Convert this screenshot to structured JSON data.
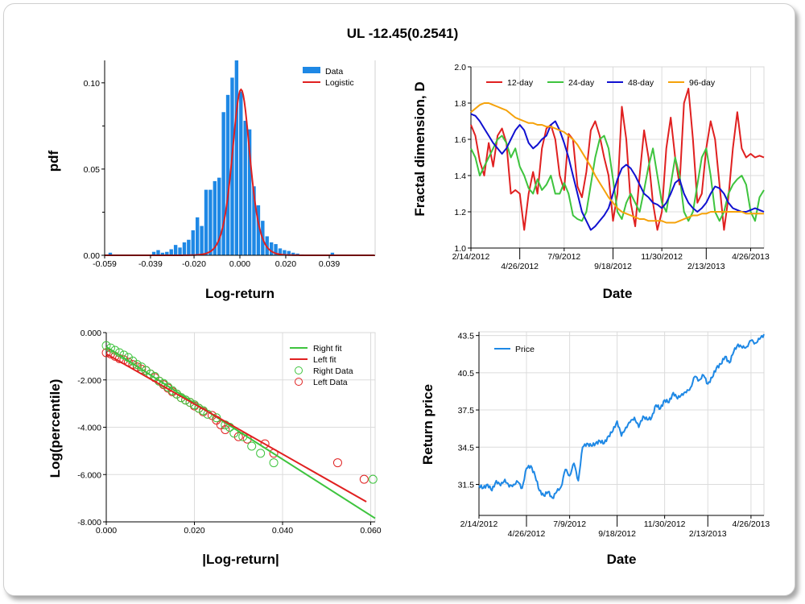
{
  "title": "UL -12.45(0.2541)",
  "chart_data": [
    {
      "id": "histogram",
      "type": "bar",
      "xlabel": "Log-return",
      "ylabel": "pdf",
      "xlim": [
        -0.059,
        0.059
      ],
      "ylim": [
        0,
        0.113
      ],
      "xticks": [
        -0.059,
        -0.039,
        -0.02,
        0.0,
        0.02,
        0.039
      ],
      "xtick_labels": [
        "-0.059",
        "-0.039",
        "-0.020",
        "0.000",
        "0.020",
        "0.039"
      ],
      "yticks": [
        0,
        0.05,
        0.1
      ],
      "ytick_labels": [
        "0.00",
        "0.05",
        "0.10"
      ],
      "legend": {
        "position": "top-right",
        "entries": [
          {
            "label": "Data",
            "color": "#1e88e5"
          },
          {
            "label": "Logistic",
            "color": "#e02020"
          }
        ]
      },
      "bins_start": -0.0575,
      "bin_width": 0.0019,
      "values": [
        0.0015,
        0,
        0,
        0,
        0,
        0,
        0,
        0,
        0,
        0,
        0.002,
        0.003,
        0.0015,
        0.002,
        0.0035,
        0.006,
        0.0045,
        0.0075,
        0.009,
        0.0145,
        0.022,
        0.017,
        0.038,
        0.038,
        0.043,
        0.045,
        0.083,
        0.093,
        0.103,
        0.113,
        0.095,
        0.078,
        0.073,
        0.04,
        0.029,
        0.02,
        0.011,
        0.0075,
        0.0065,
        0.004,
        0.003,
        0.0025,
        0.0015,
        0.001,
        0.0005,
        0,
        0,
        0,
        0,
        0,
        0,
        0.0015
      ],
      "fit": {
        "name": "Logistic",
        "mu": 0.0005,
        "s": 0.0026,
        "color": "#e02020"
      }
    },
    {
      "id": "fractal",
      "type": "line",
      "xlabel": "Date",
      "ylabel": "Fractal dimension, D",
      "x": [
        0,
        1,
        2,
        3,
        4,
        5,
        6,
        7,
        8,
        9,
        10,
        11,
        12,
        13,
        14,
        15,
        16,
        17,
        18,
        19,
        20,
        21,
        22,
        23,
        24,
        25,
        26,
        27,
        28,
        29,
        30,
        31,
        32,
        33,
        34,
        35,
        36,
        37,
        38,
        39,
        40,
        41,
        42,
        43,
        44,
        45,
        46,
        47,
        48,
        49,
        50,
        51,
        52,
        53,
        54,
        55,
        56,
        57,
        58,
        59,
        60,
        61,
        62,
        63,
        64,
        65,
        66
      ],
      "xlim": [
        0,
        66
      ],
      "ylim": [
        1.0,
        2.0
      ],
      "yticks": [
        1.0,
        1.2,
        1.4,
        1.6,
        1.8,
        2.0
      ],
      "ytick_labels": [
        "1.0",
        "1.2",
        "1.4",
        "1.6",
        "1.8",
        "2.0"
      ],
      "xticks": [
        0,
        11,
        21,
        32,
        43,
        53,
        63
      ],
      "xtick_labels": [
        "2/14/2012",
        "4/26/2012",
        "7/9/2012",
        "9/18/2012",
        "11/30/2012",
        "2/13/2013",
        "4/26/2013"
      ],
      "legend": {
        "position": "top-left"
      },
      "series": [
        {
          "name": "12-day",
          "color": "#e02020",
          "values": [
            1.68,
            1.62,
            1.48,
            1.4,
            1.58,
            1.45,
            1.62,
            1.66,
            1.58,
            1.3,
            1.32,
            1.3,
            1.1,
            1.3,
            1.42,
            1.3,
            1.55,
            1.66,
            1.68,
            1.6,
            1.4,
            1.32,
            1.63,
            1.6,
            1.34,
            1.28,
            1.42,
            1.65,
            1.7,
            1.62,
            1.5,
            1.4,
            1.15,
            1.3,
            1.78,
            1.6,
            1.25,
            1.12,
            1.4,
            1.65,
            1.5,
            1.25,
            1.1,
            1.2,
            1.55,
            1.72,
            1.5,
            1.35,
            1.8,
            1.88,
            1.6,
            1.25,
            1.3,
            1.55,
            1.7,
            1.6,
            1.35,
            1.1,
            1.28,
            1.55,
            1.75,
            1.55,
            1.5,
            1.52,
            1.5,
            1.51,
            1.5
          ]
        },
        {
          "name": "24-day",
          "color": "#3ec43e",
          "values": [
            1.55,
            1.5,
            1.4,
            1.45,
            1.5,
            1.55,
            1.6,
            1.62,
            1.58,
            1.5,
            1.55,
            1.45,
            1.4,
            1.33,
            1.3,
            1.38,
            1.32,
            1.35,
            1.4,
            1.3,
            1.3,
            1.36,
            1.3,
            1.18,
            1.16,
            1.15,
            1.2,
            1.35,
            1.5,
            1.6,
            1.62,
            1.55,
            1.38,
            1.2,
            1.16,
            1.25,
            1.3,
            1.25,
            1.2,
            1.32,
            1.45,
            1.55,
            1.4,
            1.25,
            1.2,
            1.35,
            1.5,
            1.4,
            1.2,
            1.15,
            1.2,
            1.35,
            1.5,
            1.55,
            1.4,
            1.2,
            1.15,
            1.2,
            1.3,
            1.35,
            1.38,
            1.4,
            1.35,
            1.2,
            1.15,
            1.28,
            1.32
          ]
        },
        {
          "name": "48-day",
          "color": "#1010d0",
          "values": [
            1.74,
            1.73,
            1.7,
            1.66,
            1.62,
            1.58,
            1.55,
            1.52,
            1.55,
            1.6,
            1.65,
            1.68,
            1.65,
            1.58,
            1.55,
            1.57,
            1.6,
            1.62,
            1.68,
            1.7,
            1.65,
            1.58,
            1.5,
            1.4,
            1.3,
            1.2,
            1.15,
            1.1,
            1.12,
            1.15,
            1.18,
            1.22,
            1.3,
            1.38,
            1.44,
            1.46,
            1.44,
            1.4,
            1.35,
            1.3,
            1.28,
            1.25,
            1.24,
            1.22,
            1.25,
            1.3,
            1.36,
            1.38,
            1.3,
            1.25,
            1.22,
            1.2,
            1.22,
            1.25,
            1.3,
            1.34,
            1.33,
            1.3,
            1.25,
            1.22,
            1.21,
            1.2,
            1.2,
            1.21,
            1.22,
            1.21,
            1.2
          ]
        },
        {
          "name": "96-day",
          "color": "#f5a20a",
          "values": [
            1.75,
            1.77,
            1.79,
            1.8,
            1.8,
            1.79,
            1.78,
            1.77,
            1.76,
            1.74,
            1.72,
            1.71,
            1.7,
            1.69,
            1.69,
            1.68,
            1.68,
            1.67,
            1.67,
            1.66,
            1.65,
            1.64,
            1.62,
            1.6,
            1.57,
            1.53,
            1.49,
            1.45,
            1.4,
            1.36,
            1.32,
            1.28,
            1.25,
            1.22,
            1.2,
            1.19,
            1.18,
            1.17,
            1.16,
            1.16,
            1.15,
            1.15,
            1.15,
            1.15,
            1.14,
            1.14,
            1.14,
            1.15,
            1.16,
            1.17,
            1.18,
            1.18,
            1.19,
            1.19,
            1.2,
            1.2,
            1.2,
            1.2,
            1.2,
            1.2,
            1.2,
            1.2,
            1.19,
            1.19,
            1.19,
            1.19,
            1.19
          ]
        }
      ]
    },
    {
      "id": "tail",
      "type": "scatter",
      "xlabel": "|Log-return|",
      "ylabel": "Log(percentile)",
      "xlim": [
        0,
        0.061
      ],
      "ylim": [
        -8.0,
        0.0
      ],
      "xticks": [
        0,
        0.02,
        0.04,
        0.06
      ],
      "xtick_labels": [
        "0.000",
        "0.020",
        "0.040",
        "0.060"
      ],
      "yticks": [
        -8,
        -6,
        -4,
        -2,
        0
      ],
      "ytick_labels": [
        "-8.000",
        "-6.000",
        "-4.000",
        "-2.000",
        "0.000"
      ],
      "legend": {
        "position": "top-right"
      },
      "fits": [
        {
          "name": "Right fit",
          "color": "#3ec43e",
          "x": [
            0,
            0.061
          ],
          "y": [
            -0.6,
            -7.85
          ]
        },
        {
          "name": "Left fit",
          "color": "#e02020",
          "x": [
            0,
            0.059
          ],
          "y": [
            -0.9,
            -7.15
          ]
        }
      ],
      "scatter": [
        {
          "name": "Right Data",
          "color": "#3ec43e",
          "x": [
            0.0,
            0.001,
            0.002,
            0.003,
            0.004,
            0.005,
            0.006,
            0.007,
            0.008,
            0.009,
            0.01,
            0.011,
            0.012,
            0.013,
            0.014,
            0.015,
            0.016,
            0.017,
            0.018,
            0.019,
            0.02,
            0.021,
            0.022,
            0.023,
            0.025,
            0.027,
            0.028,
            0.029,
            0.031,
            0.033,
            0.035,
            0.038,
            0.0605
          ],
          "y": [
            -0.55,
            -0.65,
            -0.75,
            -0.85,
            -0.95,
            -1.05,
            -1.2,
            -1.35,
            -1.45,
            -1.6,
            -1.75,
            -1.85,
            -2.05,
            -2.15,
            -2.3,
            -2.45,
            -2.6,
            -2.75,
            -2.85,
            -2.95,
            -3.05,
            -3.2,
            -3.3,
            -3.45,
            -3.6,
            -3.9,
            -4.0,
            -4.25,
            -4.4,
            -4.8,
            -5.1,
            -5.5,
            -6.2
          ]
        },
        {
          "name": "Left Data",
          "color": "#e02020",
          "x": [
            0.0,
            0.001,
            0.002,
            0.003,
            0.004,
            0.005,
            0.006,
            0.007,
            0.008,
            0.009,
            0.01,
            0.011,
            0.012,
            0.013,
            0.014,
            0.015,
            0.016,
            0.017,
            0.018,
            0.019,
            0.02,
            0.021,
            0.022,
            0.024,
            0.025,
            0.026,
            0.027,
            0.03,
            0.032,
            0.036,
            0.038,
            0.0525,
            0.0585
          ],
          "y": [
            -0.85,
            -0.9,
            -1.0,
            -1.1,
            -1.15,
            -1.25,
            -1.35,
            -1.45,
            -1.55,
            -1.6,
            -1.75,
            -1.9,
            -2.05,
            -2.2,
            -2.35,
            -2.5,
            -2.6,
            -2.75,
            -2.85,
            -2.95,
            -3.1,
            -3.2,
            -3.35,
            -3.5,
            -3.7,
            -3.9,
            -4.1,
            -4.4,
            -4.5,
            -4.7,
            -5.1,
            -5.5,
            -6.2
          ]
        }
      ]
    },
    {
      "id": "price",
      "type": "line",
      "xlabel": "Date",
      "ylabel": "Return price",
      "xlim": [
        0,
        66
      ],
      "ylim": [
        29.0,
        43.8
      ],
      "yticks": [
        31.5,
        34.5,
        37.5,
        40.5,
        43.5
      ],
      "ytick_labels": [
        "31.5",
        "34.5",
        "37.5",
        "40.5",
        "43.5"
      ],
      "xticks": [
        0,
        11,
        21,
        32,
        43,
        53,
        63
      ],
      "xtick_labels": [
        "2/14/2012",
        "4/26/2012",
        "7/9/2012",
        "9/18/2012",
        "11/30/2012",
        "2/13/2013",
        "4/26/2013"
      ],
      "legend": {
        "position": "top-left"
      },
      "series": [
        {
          "name": "Price",
          "color": "#1e88e5",
          "x": [
            0,
            1,
            2,
            3,
            4,
            5,
            6,
            7,
            8,
            9,
            10,
            11,
            12,
            13,
            14,
            15,
            16,
            17,
            18,
            19,
            20,
            21,
            22,
            23,
            24,
            25,
            26,
            27,
            28,
            29,
            30,
            31,
            32,
            33,
            34,
            35,
            36,
            37,
            38,
            39,
            40,
            41,
            42,
            43,
            44,
            45,
            46,
            47,
            48,
            49,
            50,
            51,
            52,
            53,
            54,
            55,
            56,
            57,
            58,
            59,
            60,
            61,
            62,
            63,
            64,
            65,
            66
          ],
          "values": [
            31.4,
            31.2,
            31.5,
            31.0,
            31.8,
            31.4,
            31.9,
            31.3,
            31.5,
            31.7,
            31.2,
            32.8,
            33.0,
            32.2,
            31.0,
            30.6,
            30.9,
            30.4,
            30.9,
            31.3,
            32.7,
            32.2,
            33.2,
            31.8,
            34.5,
            34.8,
            34.6,
            34.8,
            35.0,
            34.8,
            35.4,
            35.8,
            36.6,
            35.4,
            36.1,
            36.5,
            36.9,
            36.1,
            37.0,
            36.7,
            36.9,
            37.9,
            37.6,
            38.3,
            38.1,
            38.9,
            38.4,
            38.8,
            38.9,
            39.3,
            40.2,
            39.9,
            40.3,
            39.6,
            40.1,
            40.9,
            41.2,
            41.8,
            41.3,
            42.2,
            42.8,
            42.5,
            42.6,
            43.1,
            42.9,
            43.2,
            43.6
          ]
        }
      ]
    }
  ]
}
